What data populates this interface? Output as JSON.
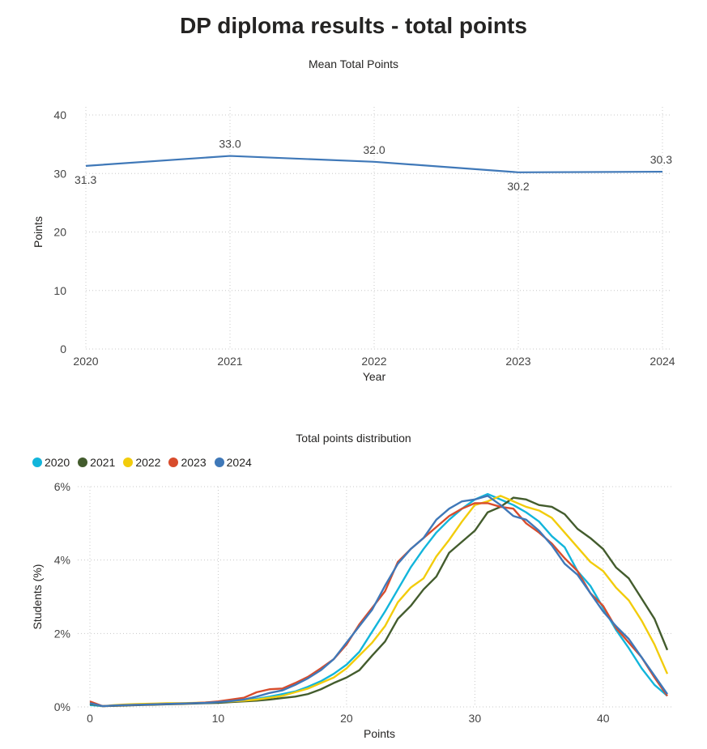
{
  "title": "DP diploma results - total points",
  "chart_data": [
    {
      "type": "line",
      "title": "Mean Total Points",
      "xlabel": "Year",
      "ylabel": "Points",
      "categories": [
        "2020",
        "2021",
        "2022",
        "2023",
        "2024"
      ],
      "series": [
        {
          "values": [
            31.3,
            33.0,
            32.0,
            30.2,
            30.3
          ],
          "color": "#3F78B8"
        }
      ],
      "data_labels": [
        "31.3",
        "33.0",
        "32.0",
        "30.2",
        "30.3"
      ],
      "ylim": [
        0,
        40
      ],
      "yticks": [
        "0",
        "10",
        "20",
        "30",
        "40"
      ],
      "grid": true
    },
    {
      "type": "line",
      "title": "Total points distribution",
      "xlabel": "Points",
      "ylabel": "Students (%)",
      "xlim": [
        0,
        45
      ],
      "ylim": [
        0,
        6
      ],
      "xticks": [
        "0",
        "10",
        "20",
        "30",
        "40"
      ],
      "yticks": [
        "0%",
        "2%",
        "4%",
        "6%"
      ],
      "legend_position": "top-left",
      "grid": true,
      "x": [
        0,
        1,
        2,
        3,
        4,
        5,
        6,
        7,
        8,
        9,
        10,
        11,
        12,
        13,
        14,
        15,
        16,
        17,
        18,
        19,
        20,
        21,
        22,
        23,
        24,
        25,
        26,
        27,
        28,
        29,
        30,
        31,
        32,
        33,
        34,
        35,
        36,
        37,
        38,
        39,
        40,
        41,
        42,
        43,
        44,
        45
      ],
      "series": [
        {
          "name": "2020",
          "color": "#12B5DB",
          "values": [
            0.05,
            0.02,
            0.04,
            0.05,
            0.06,
            0.07,
            0.08,
            0.09,
            0.1,
            0.11,
            0.13,
            0.15,
            0.18,
            0.22,
            0.28,
            0.35,
            0.42,
            0.55,
            0.7,
            0.9,
            1.15,
            1.5,
            2.05,
            2.6,
            3.2,
            3.8,
            4.3,
            4.75,
            5.1,
            5.4,
            5.65,
            5.8,
            5.65,
            5.5,
            5.3,
            5.05,
            4.65,
            4.35,
            3.7,
            3.3,
            2.7,
            2.1,
            1.6,
            1.05,
            0.6,
            0.3
          ]
        },
        {
          "name": "2021",
          "color": "#435C2D",
          "values": [
            0.08,
            0.02,
            0.03,
            0.04,
            0.05,
            0.06,
            0.07,
            0.08,
            0.09,
            0.1,
            0.11,
            0.13,
            0.15,
            0.17,
            0.2,
            0.24,
            0.28,
            0.35,
            0.48,
            0.65,
            0.8,
            1.0,
            1.4,
            1.78,
            2.4,
            2.75,
            3.2,
            3.55,
            4.2,
            4.5,
            4.8,
            5.3,
            5.45,
            5.7,
            5.65,
            5.5,
            5.45,
            5.25,
            4.85,
            4.6,
            4.3,
            3.8,
            3.5,
            2.95,
            2.4,
            1.55
          ]
        },
        {
          "name": "2022",
          "color": "#F2CC0C",
          "values": [
            0.1,
            0.02,
            0.05,
            0.07,
            0.08,
            0.09,
            0.1,
            0.1,
            0.11,
            0.12,
            0.14,
            0.15,
            0.17,
            0.2,
            0.25,
            0.3,
            0.4,
            0.5,
            0.65,
            0.8,
            1.05,
            1.4,
            1.75,
            2.2,
            2.85,
            3.25,
            3.5,
            4.1,
            4.55,
            5.05,
            5.5,
            5.6,
            5.75,
            5.6,
            5.45,
            5.35,
            5.15,
            4.75,
            4.35,
            3.95,
            3.7,
            3.25,
            2.9,
            2.35,
            1.7,
            0.9
          ]
        },
        {
          "name": "2023",
          "color": "#D84C2C",
          "values": [
            0.15,
            0.02,
            0.04,
            0.05,
            0.06,
            0.07,
            0.08,
            0.09,
            0.1,
            0.12,
            0.15,
            0.2,
            0.25,
            0.4,
            0.48,
            0.5,
            0.65,
            0.82,
            1.05,
            1.3,
            1.7,
            2.25,
            2.7,
            3.15,
            3.95,
            4.3,
            4.6,
            4.9,
            5.2,
            5.4,
            5.55,
            5.55,
            5.45,
            5.4,
            5.0,
            4.75,
            4.45,
            4.05,
            3.7,
            3.1,
            2.75,
            2.15,
            1.75,
            1.35,
            0.8,
            0.3
          ]
        },
        {
          "name": "2024",
          "color": "#3F78B8",
          "values": [
            0.1,
            0.02,
            0.04,
            0.05,
            0.06,
            0.07,
            0.08,
            0.09,
            0.1,
            0.11,
            0.13,
            0.16,
            0.2,
            0.28,
            0.38,
            0.45,
            0.6,
            0.78,
            1.0,
            1.3,
            1.75,
            2.2,
            2.65,
            3.3,
            3.9,
            4.3,
            4.6,
            5.1,
            5.4,
            5.6,
            5.65,
            5.75,
            5.5,
            5.2,
            5.1,
            4.8,
            4.4,
            3.9,
            3.6,
            3.1,
            2.6,
            2.2,
            1.85,
            1.35,
            0.85,
            0.35
          ]
        }
      ]
    }
  ]
}
